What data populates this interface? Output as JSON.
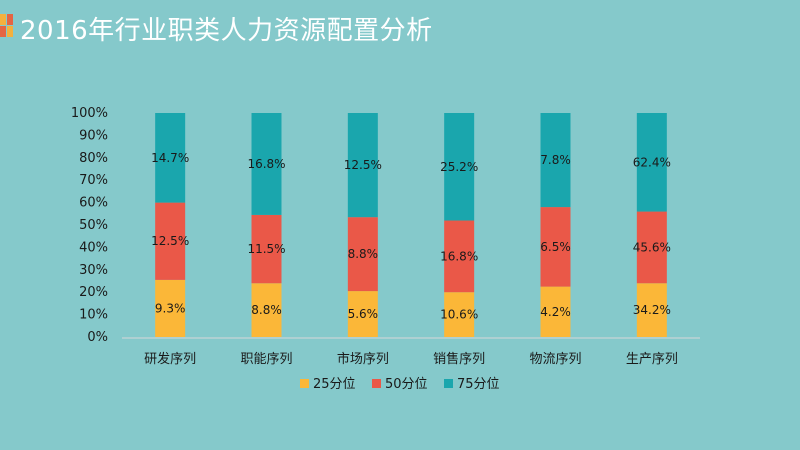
{
  "page": {
    "title": "2016年行业职类人力资源配置分析"
  },
  "chart_data": {
    "type": "bar",
    "stacked": true,
    "categories": [
      "研发序列",
      "职能序列",
      "市场序列",
      "销售序列",
      "物流序列",
      "生产序列"
    ],
    "ylim": [
      0,
      100
    ],
    "yticks": [
      "0%",
      "10%",
      "20%",
      "30%",
      "40%",
      "50%",
      "60%",
      "70%",
      "80%",
      "90%",
      "100%"
    ],
    "series": [
      {
        "name": "25分位",
        "color": "#fbb738",
        "share": [
          25.5,
          24,
          20.5,
          20,
          22.5,
          24
        ],
        "labels": [
          "9.3%",
          "8.8%",
          "5.6%",
          "10.6%",
          "4.2%",
          "34.2%"
        ]
      },
      {
        "name": "50分位",
        "color": "#ea5848",
        "share": [
          34.5,
          30.5,
          33,
          32,
          35.5,
          32
        ],
        "labels": [
          "12.5%",
          "11.5%",
          "8.8%",
          "16.8%",
          "6.5%",
          "45.6%"
        ]
      },
      {
        "name": "75分位",
        "color": "#1aa6ad",
        "share": [
          40,
          45.5,
          46.5,
          48,
          42,
          44
        ],
        "labels": [
          "14.7%",
          "16.8%",
          "12.5%",
          "25.2%",
          "7.8%",
          "62.4%"
        ]
      }
    ],
    "legend_position": "bottom",
    "grid": false
  }
}
